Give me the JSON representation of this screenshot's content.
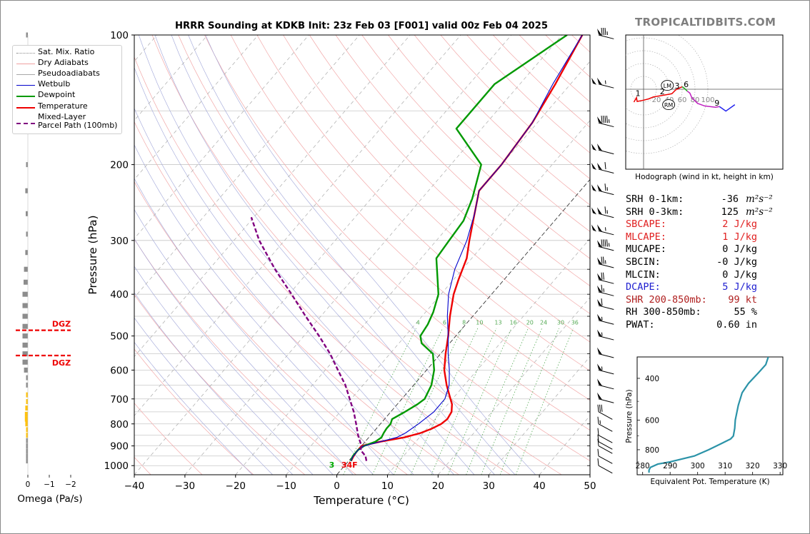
{
  "chart_data": {
    "type": "line",
    "title": "HRRR Sounding at KDKB Init: 23z Feb 03 [F001] valid 00z Feb 04 2025",
    "watermark": "TROPICALTIDBITS.COM",
    "xlabel": "Temperature (°C)",
    "ylabel": "Pressure (hPa)",
    "x_ticks": [
      "−40",
      "−30",
      "−20",
      "−10",
      "0",
      "10",
      "20",
      "30",
      "40",
      "50"
    ],
    "x_tick_values": [
      -40,
      -30,
      -20,
      -10,
      0,
      10,
      20,
      30,
      40,
      50
    ],
    "y_ticks": [
      "100",
      "200",
      "300",
      "400",
      "500",
      "600",
      "700",
      "800",
      "900",
      "1000"
    ],
    "y_tick_values": [
      100,
      200,
      300,
      400,
      500,
      600,
      700,
      800,
      900,
      1000
    ],
    "xlim": [
      -40,
      50
    ],
    "ylim": [
      1050,
      100
    ],
    "y_scale": "log",
    "grid": true,
    "legend_position": "top-left",
    "legend": [
      {
        "label": "Sat. Mix. Ratio",
        "color": "#888888",
        "style": "dotted"
      },
      {
        "label": "Dry Adiabats",
        "color": "#f0a0a0",
        "style": "solid"
      },
      {
        "label": "Pseudoadiabats",
        "color": "#a8a8a8",
        "style": "solid"
      },
      {
        "label": "Wetbulb",
        "color": "#0000cc",
        "style": "solid"
      },
      {
        "label": "Dewpoint",
        "color": "#009900",
        "style": "solid"
      },
      {
        "label": "Temperature",
        "color": "#ee0000",
        "style": "solid"
      },
      {
        "label": "Mixed-Layer\nParcel Path (100mb)",
        "color": "#800080",
        "style": "dashed"
      }
    ],
    "mixing_ratio_labels": [
      "4",
      "6",
      "8",
      "10",
      "13",
      "16",
      "20",
      "24",
      "30",
      "36"
    ],
    "mixing_ratio_values": [
      4,
      6,
      8,
      10,
      13,
      16,
      20,
      24,
      30,
      36
    ],
    "surface_label": "3",
    "surface_temp_label": "34F",
    "series": [
      {
        "name": "Temperature",
        "color": "#ee0000",
        "p": [
          975,
          955,
          930,
          900,
          880,
          860,
          840,
          820,
          800,
          780,
          750,
          720,
          690,
          650,
          600,
          550,
          500,
          450,
          400,
          370,
          330,
          300,
          260,
          230,
          200,
          160,
          130,
          100
        ],
        "t": [
          0.5,
          0.2,
          0,
          0,
          3,
          7,
          9.5,
          11,
          12,
          12.4,
          12,
          10.8,
          9,
          6.5,
          3.5,
          1,
          -1.5,
          -4.5,
          -7.5,
          -9,
          -11,
          -13.5,
          -17,
          -20,
          -20,
          -21,
          -23,
          -26
        ]
      },
      {
        "name": "Dewpoint",
        "color": "#009900",
        "p": [
          975,
          950,
          920,
          900,
          880,
          860,
          840,
          820,
          800,
          780,
          750,
          720,
          700,
          650,
          600,
          550,
          520,
          500,
          470,
          440,
          400,
          330,
          300,
          270,
          240,
          200,
          165,
          130,
          100
        ],
        "t": [
          0.4,
          0,
          0,
          0.5,
          2,
          2.5,
          2.2,
          2,
          2,
          1.5,
          2.8,
          4,
          4.5,
          3.5,
          1.5,
          -1.5,
          -5.5,
          -7,
          -7.5,
          -8.5,
          -10.5,
          -17,
          -17.5,
          -18,
          -20,
          -24,
          -35,
          -35,
          -29
        ]
      },
      {
        "name": "Wetbulb",
        "color": "#0000cc",
        "p": [
          975,
          950,
          920,
          900,
          880,
          860,
          840,
          800,
          750,
          700,
          650,
          600,
          550,
          500,
          450,
          400,
          350,
          300,
          260,
          230,
          200,
          160,
          130,
          100
        ],
        "t": [
          0.4,
          0.1,
          0,
          0.5,
          3,
          5.5,
          6.5,
          7.5,
          8.5,
          8.5,
          7,
          4.5,
          1.5,
          -1.5,
          -5,
          -8.5,
          -11.5,
          -14,
          -17,
          -20,
          -20,
          -21,
          -23.5,
          -26
        ]
      },
      {
        "name": "Parcel",
        "color": "#800080",
        "dash": true,
        "p": [
          975,
          950,
          920,
          900,
          880,
          850,
          800,
          750,
          700,
          650,
          600,
          550,
          500,
          450,
          400,
          350,
          300,
          265
        ],
        "t": [
          3.5,
          2.5,
          0.5,
          0,
          -1,
          -2.5,
          -4.8,
          -7.3,
          -10.3,
          -13.5,
          -17.5,
          -21.8,
          -27,
          -33,
          -39.5,
          -47,
          -55,
          -60.5
        ]
      }
    ],
    "wind_barbs": {
      "pressures": [
        100,
        130,
        160,
        185,
        205,
        230,
        260,
        285,
        310,
        340,
        370,
        395,
        425,
        460,
        500,
        550,
        600,
        650,
        700,
        750,
        800,
        850,
        880,
        900,
        950,
        1000
      ],
      "speeds_kt": [
        85,
        105,
        95,
        100,
        110,
        115,
        115,
        105,
        95,
        75,
        70,
        65,
        60,
        55,
        55,
        50,
        55,
        50,
        50,
        30,
        15,
        10,
        10,
        10,
        10,
        10
      ]
    },
    "omega": {
      "label": "Omega (Pa/s)",
      "ticks": [
        "0",
        "−1",
        "−2"
      ],
      "tick_values": [
        0,
        -1,
        -2
      ],
      "dgz_label": "DGZ",
      "dgz_top_hPa": 485,
      "dgz_bottom_hPa": 555,
      "pressures": [
        100,
        200,
        230,
        260,
        290,
        320,
        350,
        375,
        400,
        425,
        450,
        475,
        500,
        525,
        550,
        575,
        600,
        625,
        650,
        685,
        710,
        735,
        760,
        780,
        800,
        825,
        850,
        875,
        900,
        925,
        950,
        975
      ],
      "values": [
        0.04,
        0.06,
        0.12,
        0.1,
        0.08,
        0.12,
        0.18,
        0.2,
        0.25,
        0.25,
        0.25,
        0.25,
        0.25,
        0.25,
        0.25,
        0.25,
        0.18,
        0.08,
        0.04,
        -0.03,
        -0.06,
        -0.12,
        -0.14,
        -0.14,
        -0.12,
        -0.04,
        -0.02,
        0,
        0.05,
        0.05,
        0.05,
        0.05
      ]
    },
    "hodograph": {
      "caption": "Hodograph (wind in kt, height in km)",
      "ring_labels": [
        "20",
        "40",
        "60",
        "80",
        "100"
      ],
      "ring_values": [
        20,
        40,
        60,
        80,
        100
      ],
      "height_labels": [
        "1",
        "2",
        "3",
        "6",
        "9"
      ],
      "storm_motion_labels": [
        "LM",
        "RM"
      ],
      "lm": [
        37,
        6
      ],
      "rm": [
        39,
        -24
      ],
      "points": [
        [
          -15,
          -20
        ],
        [
          -11,
          -13
        ],
        [
          -10,
          -19
        ],
        [
          0,
          -17
        ],
        [
          8,
          -15
        ],
        [
          15,
          -12
        ],
        [
          27,
          -10
        ],
        [
          38,
          -8
        ],
        [
          44,
          -7
        ],
        [
          50,
          -1
        ],
        [
          60,
          4
        ],
        [
          64,
          1
        ],
        [
          68,
          -3
        ],
        [
          72,
          -6
        ],
        [
          75,
          -13
        ],
        [
          84,
          -22
        ],
        [
          95,
          -26
        ],
        [
          112,
          -28
        ],
        [
          118,
          -27
        ],
        [
          128,
          -34
        ],
        [
          142,
          -24
        ]
      ]
    },
    "theta_e": {
      "xlabel": "Equivalent Pot. Temperature (K)",
      "ylabel": "Pressure (hPa)",
      "x_ticks": [
        "280",
        "290",
        "300",
        "310",
        "320",
        "330"
      ],
      "x_tick_values": [
        280,
        290,
        300,
        310,
        320,
        330
      ],
      "y_ticks": [
        "400",
        "600",
        "800"
      ],
      "y_tick_values": [
        400,
        600,
        800
      ],
      "xlim": [
        278,
        331
      ],
      "ylim": [
        1020,
        325
      ],
      "p": [
        325,
        350,
        380,
        420,
        460,
        520,
        600,
        650,
        700,
        720,
        750,
        800,
        850,
        900,
        920,
        950,
        975,
        1000
      ],
      "theta": [
        325.7,
        324.8,
        322,
        318.5,
        316.2,
        314.8,
        313.7,
        313.5,
        313,
        312,
        309,
        304,
        298.8,
        290,
        285.5,
        282.8,
        282.3,
        282.3
      ]
    },
    "stats": [
      {
        "label": "SRH 0-1km:",
        "value": "-36",
        "unit": "m²s⁻²",
        "color": "#000000"
      },
      {
        "label": "SRH 0-3km:",
        "value": "125",
        "unit": "m²s⁻²",
        "color": "#000000"
      },
      {
        "label": "SBCAPE:",
        "value": "2 J/kg",
        "unit": "",
        "color": "#e02020"
      },
      {
        "label": "MLCAPE:",
        "value": "1 J/kg",
        "unit": "",
        "color": "#e02020"
      },
      {
        "label": "MUCAPE:",
        "value": "0 J/kg",
        "unit": "",
        "color": "#000000"
      },
      {
        "label": "SBCIN:",
        "value": "-0 J/kg",
        "unit": "",
        "color": "#000000"
      },
      {
        "label": "MLCIN:",
        "value": "0 J/kg",
        "unit": "",
        "color": "#000000"
      },
      {
        "label": "DCAPE:",
        "value": "5 J/kg",
        "unit": "",
        "color": "#2020d0"
      },
      {
        "label": "SHR 200-850mb:",
        "value": "99 kt",
        "unit": "",
        "color": "#b02020"
      },
      {
        "label": "RH 300-850mb:",
        "value": "55 %",
        "unit": "",
        "color": "#000000"
      },
      {
        "label": "PWAT:",
        "value": "0.60 in",
        "unit": "",
        "color": "#000000"
      }
    ]
  }
}
